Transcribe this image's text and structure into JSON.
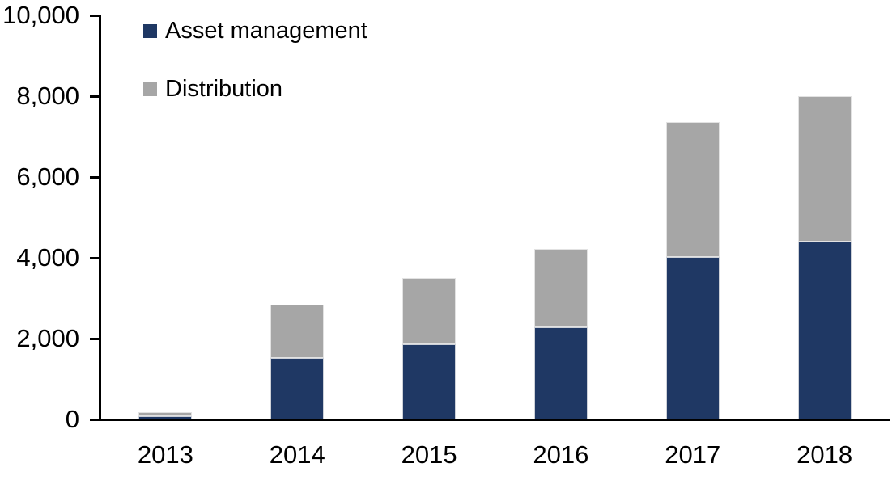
{
  "chart_data": {
    "type": "bar",
    "stacked": true,
    "title": "",
    "xlabel": "",
    "ylabel": "",
    "categories": [
      "2013",
      "2014",
      "2015",
      "2016",
      "2017",
      "2018"
    ],
    "series": [
      {
        "name": "Asset management",
        "color": "#1f3864",
        "values": [
          90,
          1520,
          1870,
          2290,
          4030,
          4400
        ]
      },
      {
        "name": "Distribution",
        "color": "#a6a6a6",
        "values": [
          100,
          1330,
          1630,
          1940,
          3330,
          3600
        ]
      }
    ],
    "totals": [
      190,
      2850,
      3500,
      4230,
      7360,
      8000
    ],
    "ylim": [
      0,
      10000
    ],
    "ytick_interval": 2000,
    "ytick_values": [
      0,
      2000,
      4000,
      6000,
      8000,
      10000
    ],
    "ytick_labels": [
      "0",
      "2,000",
      "4,000",
      "6,000",
      "8,000",
      "10,000"
    ],
    "grid": false,
    "legend_position": "top-left-inside",
    "axis_color": "#000000",
    "background_color": "#ffffff"
  }
}
